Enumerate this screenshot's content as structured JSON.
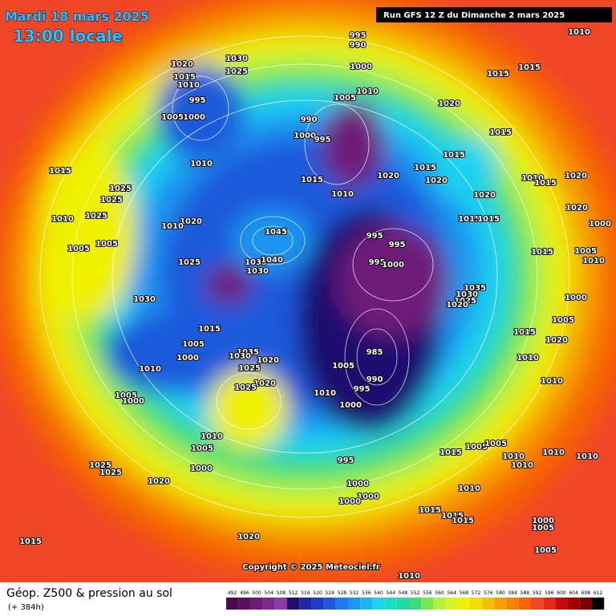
{
  "header": {
    "date": "Mardi 18 mars 2025",
    "time": "13:00 locale",
    "run": "Run GFS 12 Z du Dimanche 2 mars 2025"
  },
  "isobar_labels": [
    995,
    990,
    1010,
    1020,
    1030,
    1025,
    1000,
    1015,
    1015,
    1015,
    1010,
    1005,
    1010,
    995,
    1020,
    1005,
    1000,
    990,
    1000,
    995,
    1015,
    1015,
    1010,
    1015,
    1020,
    1015,
    1015,
    1020,
    1010,
    1015,
    1020,
    1025,
    1010,
    1025,
    1020,
    1020,
    1010,
    1025,
    1020,
    1010,
    1015,
    1015,
    1000,
    1045,
    995,
    995,
    1005,
    1005,
    1015,
    1005,
    1025,
    1035,
    1040,
    1030,
    995,
    1000,
    1010,
    1035,
    1030,
    1025,
    1020,
    1030,
    1000,
    1005,
    1015,
    1015,
    1020,
    1005,
    985,
    1035,
    1030,
    1000,
    1020,
    1005,
    1025,
    1010,
    1010,
    1010,
    990,
    1020,
    1025,
    995,
    1010,
    1005,
    1000,
    1000,
    1010,
    1005,
    1005,
    1005,
    1015,
    1010,
    1010,
    1010,
    995,
    1000,
    1025,
    1025,
    1010,
    1020,
    1000,
    1000,
    1010,
    1000,
    1015,
    1015,
    1015,
    1000,
    1005,
    1020,
    1015,
    1005,
    1010
  ],
  "footer": {
    "copyright": "Copyright © 2025 Meteociel.fr",
    "caption": "Géop. Z500 & pression au sol",
    "lead_time": "(+ 384h)"
  },
  "colorbar": {
    "ticks": [
      492,
      496,
      500,
      504,
      508,
      512,
      516,
      520,
      524,
      528,
      532,
      536,
      540,
      544,
      548,
      552,
      556,
      560,
      564,
      568,
      572,
      576,
      580,
      584,
      588,
      592,
      596,
      600,
      604,
      608,
      612
    ],
    "colors": [
      "#4b0a4b",
      "#5a1060",
      "#6e1a78",
      "#7d2890",
      "#8c3ca0",
      "#1e0f6e",
      "#1e28a0",
      "#1e3cc8",
      "#1e5adc",
      "#1e78f0",
      "#1e96f0",
      "#1eb4f0",
      "#1ed2f0",
      "#1edcc8",
      "#1edca0",
      "#3cdc78",
      "#78e650",
      "#b4f03c",
      "#dcf028",
      "#f0f000",
      "#f5dc00",
      "#f5be00",
      "#f5a000",
      "#f58200",
      "#f56400",
      "#f04628",
      "#e62814",
      "#c80a0a",
      "#a00000",
      "#780000",
      "#000000"
    ]
  }
}
